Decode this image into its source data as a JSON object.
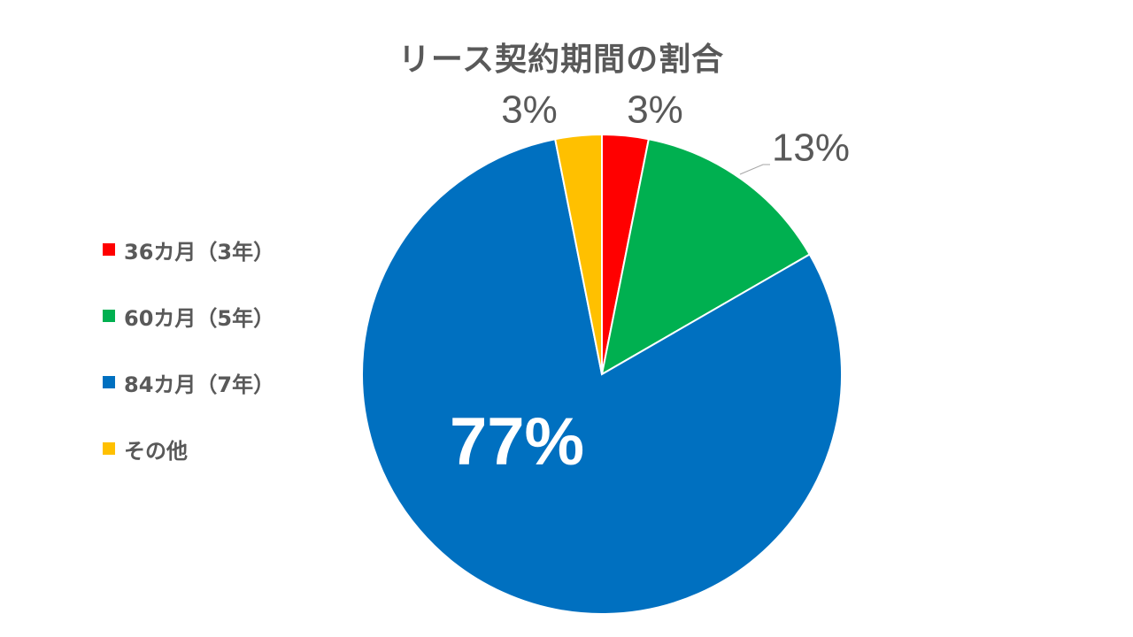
{
  "chart_data": {
    "type": "pie",
    "title": "リース契約期間の割合",
    "categories": [
      "36カ月（3年）",
      "60カ月（5年）",
      "84カ月（7年）",
      "その他"
    ],
    "values": [
      3,
      13,
      77,
      3
    ],
    "data_labels": [
      "3%",
      "13%",
      "77%",
      "3%"
    ],
    "colors": [
      "#ff0000",
      "#00b050",
      "#0070c0",
      "#ffc000"
    ],
    "legend_position": "left",
    "start_angle": "12 o'clock",
    "direction": "clockwise"
  }
}
